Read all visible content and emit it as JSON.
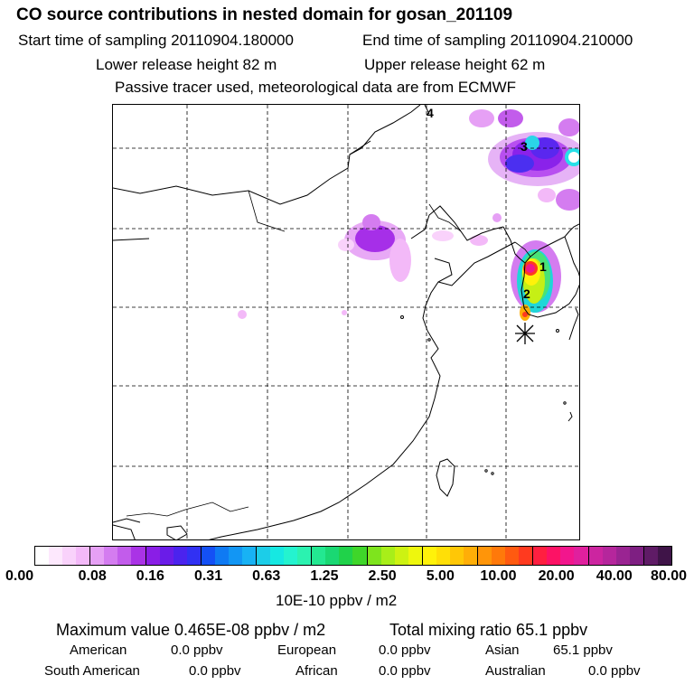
{
  "header": {
    "title": "CO  source contributions in nested domain for gosan_201109",
    "start_label": "Start time of sampling 20110904.180000",
    "end_label": "End time of sampling 20110904.210000",
    "lower_label": "Lower release height   82 m",
    "upper_label": "Upper release height   62 m",
    "note": "Passive tracer used, meteorological data are from ECMWF"
  },
  "map": {
    "markers": [
      {
        "label": "1"
      },
      {
        "label": "2"
      },
      {
        "label": "3"
      },
      {
        "label": "4"
      }
    ],
    "receptor_symbol": "star-receptor"
  },
  "colorbar": {
    "tick_labels": [
      "0.00",
      "0.08",
      "0.16",
      "0.31",
      "0.63",
      "1.25",
      "2.50",
      "5.00",
      "10.00",
      "20.00",
      "40.00",
      "80.00"
    ],
    "colors": [
      "#ffffff",
      "#fde8fd",
      "#f9d2fb",
      "#f3b9f8",
      "#e6a0f5",
      "#d47cf0",
      "#c25ceb",
      "#aa33e6",
      "#8a1ee6",
      "#6a1ce8",
      "#4b23ee",
      "#3131f3",
      "#1450f5",
      "#0f7af3",
      "#1296f4",
      "#18b2f4",
      "#1ccde8",
      "#16e8e2",
      "#24f3cf",
      "#2bf2b0",
      "#23e891",
      "#1ad873",
      "#20d24a",
      "#3fd62a",
      "#7ee41d",
      "#a8ee19",
      "#cdf212",
      "#eef70d",
      "#fff20a",
      "#ffdf07",
      "#ffc706",
      "#ffae07",
      "#ff9509",
      "#ff790a",
      "#ff5a10",
      "#ff3a1f",
      "#ff1f40",
      "#fd1265",
      "#f2168d",
      "#e0209e",
      "#cc25a0",
      "#b5269c",
      "#9a2492",
      "#7e1f82",
      "#5f1b66",
      "#3f1448"
    ],
    "unit": "10E-10 ppbv / m2"
  },
  "stats": {
    "maximum": "Maximum value  0.465E-08 ppbv / m2",
    "total": "Total mixing ratio       65.1 ppbv",
    "regions": [
      {
        "name": "American",
        "value": "0.0 ppbv"
      },
      {
        "name": "European",
        "value": "0.0 ppbv"
      },
      {
        "name": "Asian",
        "value": "65.1 ppbv"
      },
      {
        "name": "South American",
        "value": "0.0 ppbv"
      },
      {
        "name": "African",
        "value": "0.0 ppbv"
      },
      {
        "name": "Australian",
        "value": "0.0 ppbv"
      }
    ]
  }
}
